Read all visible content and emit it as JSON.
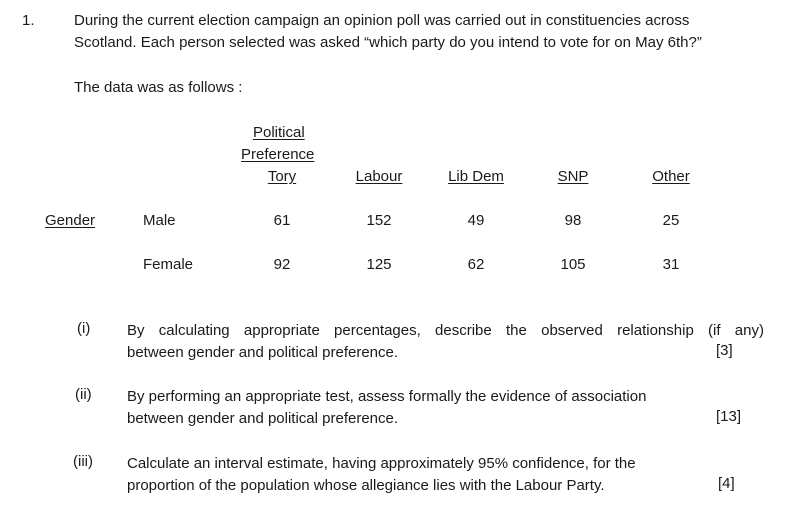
{
  "question": {
    "number": "1.",
    "intro_line1": "During the current election campaign an opinion poll was carried out in constituencies across",
    "intro_line2": "Scotland. Each person selected was asked “which party do you intend to vote for on May 6th?”",
    "data_intro": "The data was as follows :"
  },
  "table": {
    "header_line1": "Political",
    "header_line2": "Preference",
    "columns": [
      "Tory",
      "Labour",
      "Lib Dem",
      "SNP",
      "Other"
    ],
    "row_group_label": "Gender",
    "rows": [
      {
        "label": "Male",
        "values": [
          "61",
          "152",
          "49",
          "98",
          "25"
        ]
      },
      {
        "label": "Female",
        "values": [
          "92",
          "125",
          "62",
          "105",
          "31"
        ]
      }
    ]
  },
  "parts": [
    {
      "label": "(i)",
      "line1": "By calculating appropriate percentages, describe the observed relationship (if any)",
      "line2": "between gender and political preference.",
      "marks": "[3]"
    },
    {
      "label": "(ii)",
      "line1": "By performing an appropriate test, assess formally the evidence of association",
      "line2": "between gender and political preference.",
      "marks": "[13]"
    },
    {
      "label": "(iii)",
      "line1": "Calculate an interval estimate, having approximately 95% confidence, for the",
      "line2": "proportion of the population whose allegiance lies with the Labour Party.",
      "marks": "[4]"
    }
  ]
}
